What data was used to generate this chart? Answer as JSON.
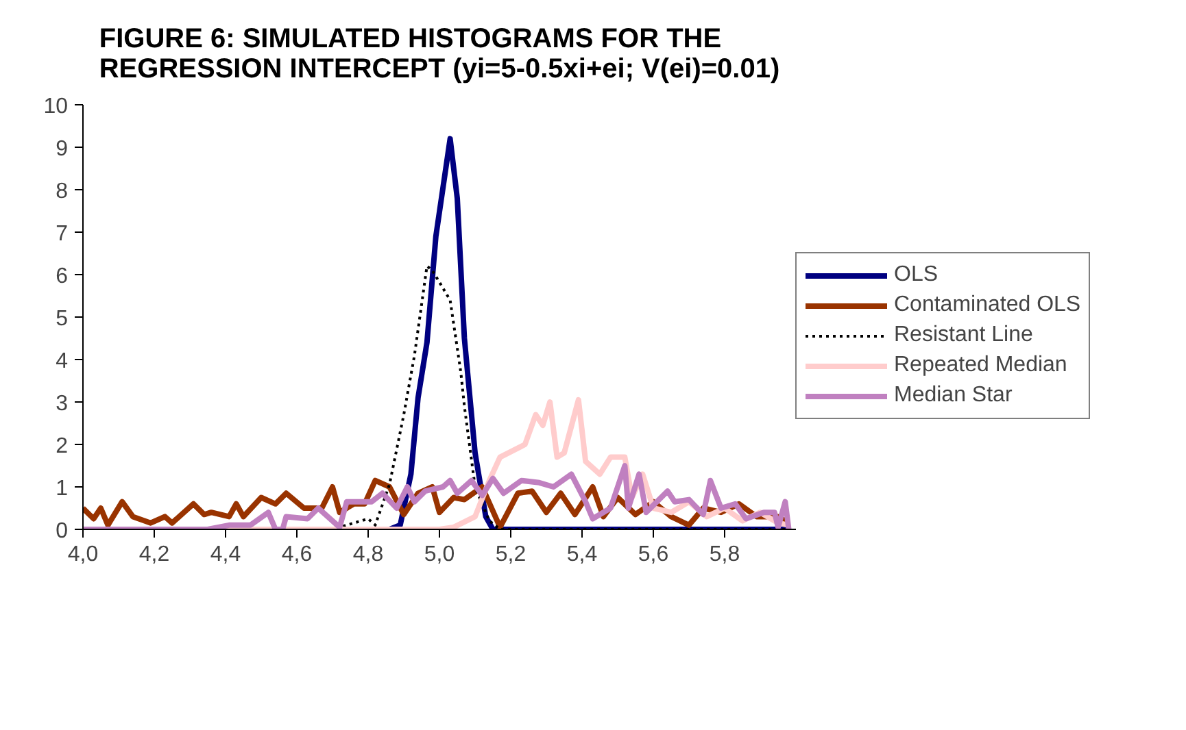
{
  "chart_data": {
    "type": "line",
    "title": "FIGURE 6: SIMULATED HISTOGRAMS FOR THE\nREGRESSION INTERCEPT (yi=5-0.5xi+ei; V(ei)=0.01)",
    "xlim": [
      4.0,
      6.0
    ],
    "ylim": [
      0,
      10
    ],
    "xticks": [
      {
        "value": 4.0,
        "label": "4,0"
      },
      {
        "value": 4.2,
        "label": "4,2"
      },
      {
        "value": 4.4,
        "label": "4,4"
      },
      {
        "value": 4.6,
        "label": "4,6"
      },
      {
        "value": 4.8,
        "label": "4,8"
      },
      {
        "value": 5.0,
        "label": "5,0"
      },
      {
        "value": 5.2,
        "label": "5,2"
      },
      {
        "value": 5.4,
        "label": "5,4"
      },
      {
        "value": 5.6,
        "label": "5,6"
      },
      {
        "value": 5.8,
        "label": "5,8"
      }
    ],
    "yticks": [
      0,
      1,
      2,
      3,
      4,
      5,
      6,
      7,
      8,
      9,
      10
    ],
    "grid": false,
    "legend": "right",
    "marker": "none",
    "series": [
      {
        "name": "OLS",
        "color": "#000080",
        "line_style": "solid",
        "x": [
          4.0,
          4.86,
          4.89,
          4.92,
          4.94,
          4.965,
          4.99,
          5.03,
          5.05,
          5.07,
          5.1,
          5.13,
          5.15,
          5.98
        ],
        "values": [
          0,
          0,
          0.1,
          1.3,
          3.1,
          4.4,
          6.9,
          9.2,
          7.8,
          4.5,
          1.8,
          0.3,
          0,
          0
        ]
      },
      {
        "name": "Contaminated OLS",
        "color": "#993300",
        "line_style": "solid",
        "x": [
          4.0,
          4.03,
          4.05,
          4.07,
          4.11,
          4.14,
          4.19,
          4.23,
          4.25,
          4.31,
          4.34,
          4.36,
          4.41,
          4.43,
          4.45,
          4.5,
          4.54,
          4.57,
          4.62,
          4.67,
          4.7,
          4.72,
          4.76,
          4.79,
          4.82,
          4.86,
          4.9,
          4.94,
          4.98,
          5.0,
          5.04,
          5.07,
          5.12,
          5.17,
          5.22,
          5.26,
          5.3,
          5.34,
          5.38,
          5.43,
          5.46,
          5.5,
          5.55,
          5.6,
          5.65,
          5.7,
          5.74,
          5.79,
          5.84,
          5.89,
          5.95,
          5.98
        ],
        "values": [
          0.5,
          0.25,
          0.5,
          0.1,
          0.65,
          0.3,
          0.15,
          0.3,
          0.15,
          0.6,
          0.35,
          0.4,
          0.3,
          0.6,
          0.3,
          0.75,
          0.6,
          0.85,
          0.5,
          0.5,
          1.0,
          0.4,
          0.6,
          0.6,
          1.15,
          1.0,
          0.35,
          0.85,
          1.0,
          0.4,
          0.75,
          0.7,
          1.0,
          0.05,
          0.85,
          0.9,
          0.4,
          0.85,
          0.35,
          1.0,
          0.3,
          0.75,
          0.35,
          0.65,
          0.3,
          0.1,
          0.5,
          0.4,
          0.6,
          0.3,
          0.3,
          0.15
        ]
      },
      {
        "name": "Resistant Line",
        "color": "#000000",
        "line_style": "dotted",
        "x": [
          4.0,
          4.7,
          4.74,
          4.8,
          4.82,
          4.86,
          4.9,
          4.93,
          4.95,
          4.965,
          4.98,
          5.03,
          5.06,
          5.07,
          5.1,
          5.14,
          5.17,
          5.98
        ],
        "values": [
          0,
          0,
          0.1,
          0.25,
          0.1,
          1.06,
          2.7,
          4.1,
          5.3,
          6.2,
          6.1,
          5.4,
          3.7,
          2.9,
          1.0,
          0.2,
          0,
          0
        ]
      },
      {
        "name": "Repeated Median",
        "color": "#ffcccc",
        "line_style": "solid",
        "x": [
          4.0,
          5.0,
          5.04,
          5.1,
          5.14,
          5.17,
          5.24,
          5.27,
          5.29,
          5.31,
          5.33,
          5.35,
          5.39,
          5.41,
          5.45,
          5.48,
          5.52,
          5.54,
          5.57,
          5.6,
          5.65,
          5.7,
          5.75,
          5.8,
          5.85,
          5.9,
          5.95,
          5.98
        ],
        "values": [
          0,
          0,
          0.05,
          0.3,
          1.15,
          1.7,
          2.0,
          2.7,
          2.45,
          3.0,
          1.7,
          1.8,
          3.05,
          1.6,
          1.3,
          1.7,
          1.7,
          0.75,
          1.3,
          0.5,
          0.4,
          0.65,
          0.3,
          0.5,
          0.2,
          0.4,
          0.15,
          0.1
        ]
      },
      {
        "name": "Median Star",
        "color": "#c080c0",
        "line_style": "solid",
        "x": [
          4.0,
          4.35,
          4.41,
          4.47,
          4.52,
          4.54,
          4.56,
          4.57,
          4.63,
          4.66,
          4.72,
          4.74,
          4.81,
          4.84,
          4.88,
          4.91,
          4.93,
          4.96,
          5.01,
          5.03,
          5.05,
          5.09,
          5.12,
          5.15,
          5.18,
          5.23,
          5.28,
          5.32,
          5.37,
          5.41,
          5.43,
          5.48,
          5.52,
          5.53,
          5.56,
          5.58,
          5.64,
          5.66,
          5.7,
          5.74,
          5.76,
          5.79,
          5.83,
          5.86,
          5.91,
          5.94,
          5.95,
          5.97,
          5.98
        ],
        "values": [
          0,
          0,
          0.1,
          0.1,
          0.4,
          0,
          0,
          0.3,
          0.25,
          0.5,
          0.05,
          0.65,
          0.65,
          0.85,
          0.5,
          1.0,
          0.65,
          0.9,
          1.0,
          1.15,
          0.85,
          1.15,
          0.8,
          1.2,
          0.85,
          1.15,
          1.1,
          1.0,
          1.3,
          0.65,
          0.25,
          0.5,
          1.5,
          0.5,
          1.3,
          0.4,
          0.9,
          0.65,
          0.7,
          0.35,
          1.15,
          0.5,
          0.6,
          0.25,
          0.4,
          0.4,
          0.05,
          0.65,
          0
        ]
      }
    ]
  }
}
